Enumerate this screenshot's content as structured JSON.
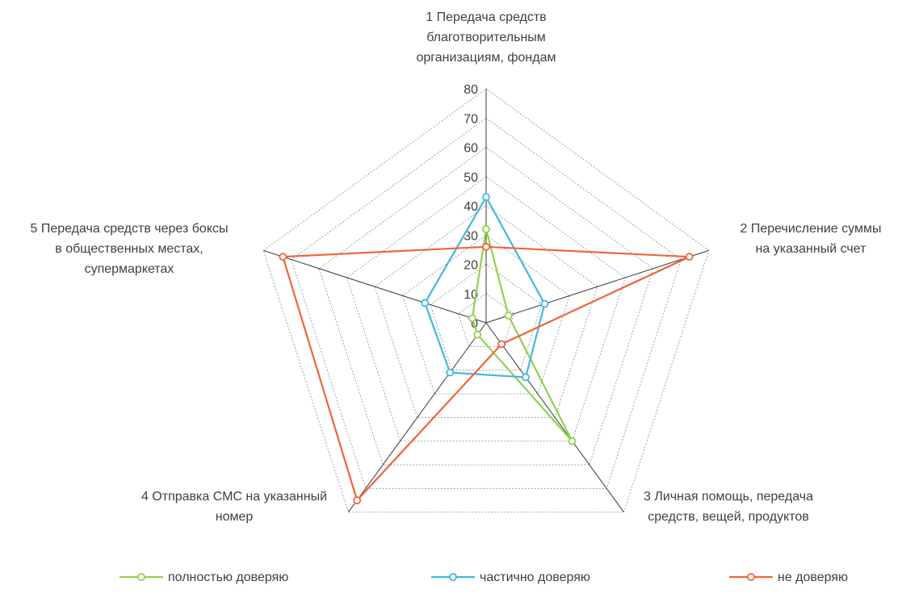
{
  "chart_data": {
    "type": "radar",
    "axes": [
      [
        "1  Передача средств",
        "благотворительным",
        "организациям, фондам"
      ],
      [
        "2  Перечисление суммы",
        "на указанный счет"
      ],
      [
        "3  Личная помощь, передача",
        "средств, вещей, продуктов"
      ],
      [
        "4  Отправка СМС на указанный",
        "номер"
      ],
      [
        "5  Передача средств через боксы",
        "в общественных местах,",
        "супермаркетах"
      ]
    ],
    "ticks": [
      "0",
      "10",
      "20",
      "30",
      "40",
      "50",
      "60",
      "70",
      "80"
    ],
    "rmax": 80,
    "series": [
      {
        "name": "полностью доверяю",
        "color": "#92D050",
        "values": [
          32,
          8,
          50,
          5,
          5
        ]
      },
      {
        "name": "частично доверяю",
        "color": "#41B8E0",
        "values": [
          43,
          21,
          23,
          21,
          22
        ]
      },
      {
        "name": "не доверяю",
        "color": "#F0643C",
        "values": [
          26,
          73,
          9,
          75,
          73
        ]
      }
    ],
    "legend_position": "bottom"
  }
}
